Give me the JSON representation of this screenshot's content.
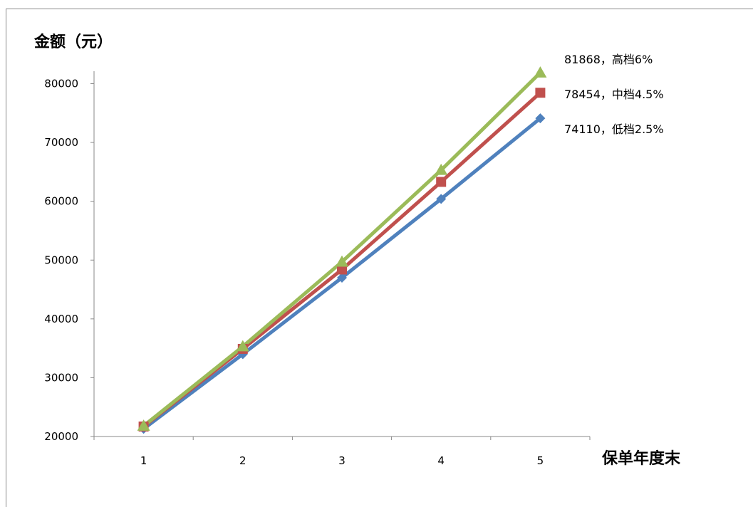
{
  "chart_data": {
    "type": "line",
    "title": "",
    "ylabel": "金额（元）",
    "xlabel": "保单年度末",
    "x": [
      1,
      2,
      3,
      4,
      5
    ],
    "y_ticks": [
      20000,
      30000,
      40000,
      50000,
      60000,
      70000,
      80000
    ],
    "ylim": [
      20000,
      80000
    ],
    "grid": false,
    "legend": "none",
    "series": [
      {
        "values": [
          21300,
          34000,
          47000,
          60400,
          74110
        ],
        "color": "#4f81bd",
        "marker": "diamond",
        "end_label": "74110，低档2.5%"
      },
      {
        "values": [
          21700,
          34900,
          48400,
          63300,
          78454
        ],
        "color": "#c0504d",
        "marker": "square",
        "end_label": "78454，中档4.5%"
      },
      {
        "values": [
          21800,
          35300,
          49700,
          65300,
          81868
        ],
        "color": "#9bbb59",
        "marker": "triangle",
        "end_label": "81868，高档6%"
      }
    ]
  }
}
